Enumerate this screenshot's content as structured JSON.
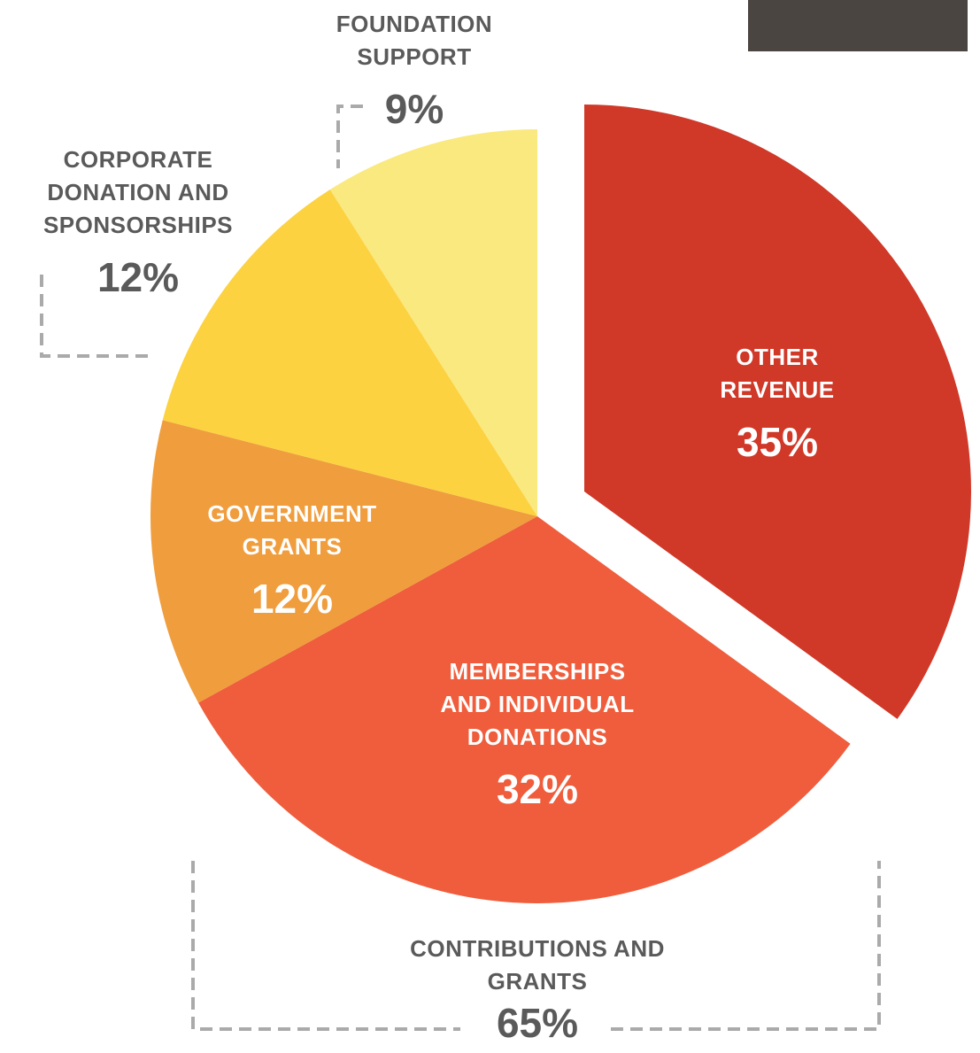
{
  "chart_data": {
    "type": "pie",
    "categories": [
      "OTHER REVENUE",
      "MEMBERSHIPS AND INDIVIDUAL DONATIONS",
      "GOVERNMENT GRANTS",
      "CORPORATE DONATION AND SPONSORSHIPS",
      "FOUNDATION SUPPORT"
    ],
    "values": [
      35,
      32,
      12,
      12,
      9
    ],
    "value_labels": [
      "35%",
      "32%",
      "12%",
      "12%",
      "9%"
    ],
    "colors": [
      "#d03828",
      "#ef5d3c",
      "#f09d3d",
      "#fcd241",
      "#fae97e"
    ],
    "explode": [
      true,
      false,
      false,
      false,
      false
    ],
    "annotations": [
      {
        "text": "CONTRIBUTIONS AND GRANTS",
        "value": 65,
        "value_label": "65%"
      }
    ]
  }
}
